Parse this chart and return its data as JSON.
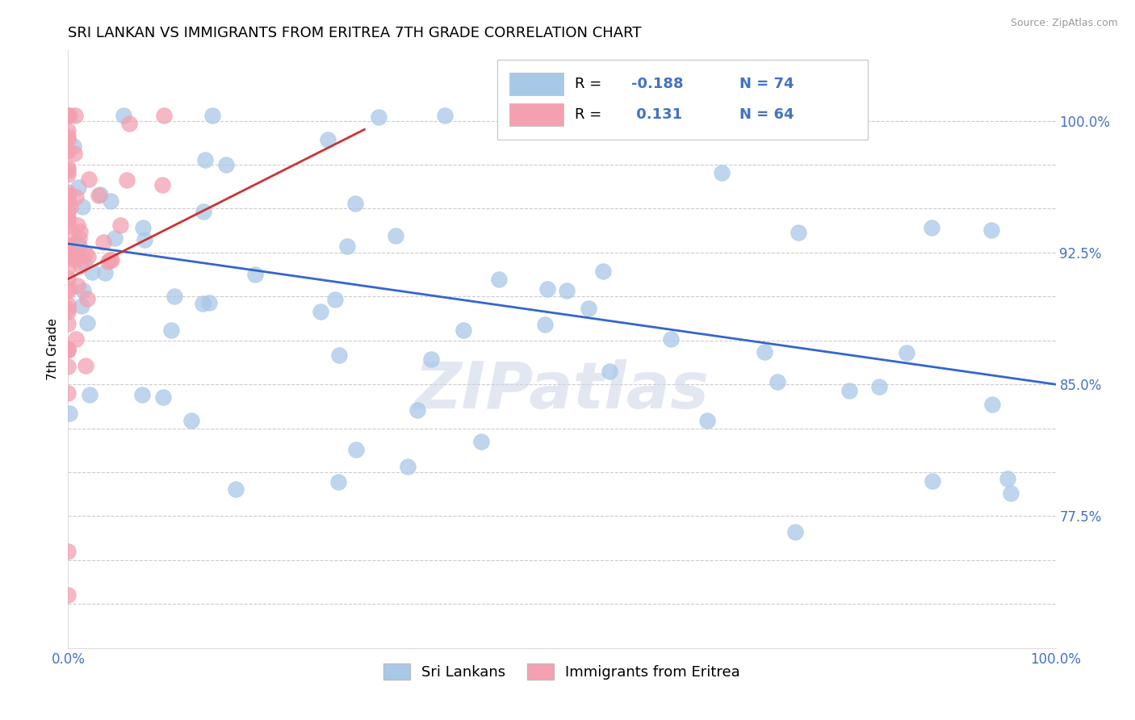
{
  "title": "SRI LANKAN VS IMMIGRANTS FROM ERITREA 7TH GRADE CORRELATION CHART",
  "source": "Source: ZipAtlas.com",
  "ylabel": "7th Grade",
  "R_blue": -0.188,
  "N_blue": 74,
  "R_pink": 0.131,
  "N_pink": 64,
  "blue_color": "#a8c8e8",
  "pink_color": "#f4a0b0",
  "blue_line_color": "#3366cc",
  "pink_line_color": "#cc3333",
  "legend_label_blue": "Sri Lankans",
  "legend_label_pink": "Immigrants from Eritrea",
  "watermark": "ZIPatlas",
  "tick_color": "#4472c4",
  "grid_color": "#cccccc",
  "blue_line_start_x": 0.0,
  "blue_line_end_x": 1.0,
  "blue_line_start_y": 0.93,
  "blue_line_end_y": 0.85,
  "pink_line_start_x": 0.0,
  "pink_line_end_x": 0.3,
  "pink_line_start_y": 0.91,
  "pink_line_end_y": 0.995,
  "xlim": [
    0.0,
    1.0
  ],
  "ylim": [
    0.7,
    1.04
  ],
  "y_ticks": [
    0.775,
    0.85,
    0.925,
    1.0
  ],
  "y_tick_labels": [
    "77.5%",
    "85.0%",
    "92.5%",
    "100.0%"
  ],
  "y_grid_ticks": [
    0.725,
    0.75,
    0.775,
    0.8,
    0.825,
    0.85,
    0.875,
    0.9,
    0.925,
    0.95,
    0.975,
    1.0
  ]
}
